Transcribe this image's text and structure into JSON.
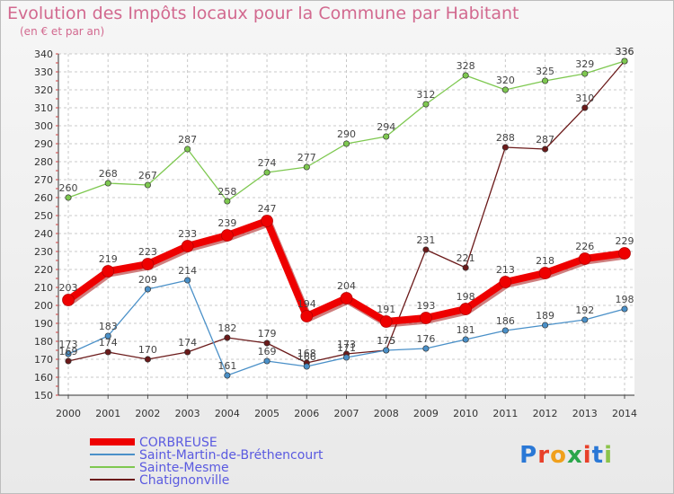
{
  "title": "Evolution des Impôts locaux pour la Commune par Habitant",
  "subtitle": "(en € et par an)",
  "logo": {
    "text": "Proxiti",
    "letters": [
      "P",
      "r",
      "o",
      "x",
      "i",
      "t",
      "i"
    ],
    "colors": [
      "#2a78d6",
      "#e8402a",
      "#f0a01c",
      "#2aa64b",
      "#e8402a",
      "#2a78d6",
      "#8bc34a"
    ]
  },
  "chart_data": {
    "type": "line",
    "x": [
      "2000",
      "2001",
      "2002",
      "2003",
      "2004",
      "2005",
      "2006",
      "2007",
      "2008",
      "2009",
      "2010",
      "2011",
      "2012",
      "2013",
      "2014"
    ],
    "ylim": [
      150,
      340
    ],
    "yticks": [
      150,
      160,
      170,
      180,
      190,
      200,
      210,
      220,
      230,
      240,
      250,
      260,
      270,
      280,
      290,
      300,
      310,
      320,
      330,
      340
    ],
    "grid": true,
    "legend": "bottom-left",
    "series": [
      {
        "name": "CORBREUSE",
        "color": "#ee0000",
        "values": [
          203,
          219,
          223,
          233,
          239,
          247,
          194,
          204,
          191,
          193,
          198,
          213,
          218,
          226,
          229
        ]
      },
      {
        "name": "Saint-Martin-de-Bréthencourt",
        "color": "#4a90c8",
        "values": [
          173,
          183,
          209,
          214,
          161,
          169,
          166,
          171,
          175,
          176,
          181,
          186,
          189,
          192,
          198
        ]
      },
      {
        "name": "Sainte-Mesme",
        "color": "#7ec850",
        "values": [
          260,
          268,
          267,
          287,
          258,
          274,
          277,
          290,
          294,
          312,
          328,
          320,
          325,
          329,
          336
        ]
      },
      {
        "name": "Chatignonville",
        "color": "#6b1a1a",
        "values": [
          169,
          174,
          170,
          174,
          182,
          179,
          168,
          173,
          175,
          231,
          221,
          288,
          287,
          310,
          336
        ]
      }
    ]
  }
}
